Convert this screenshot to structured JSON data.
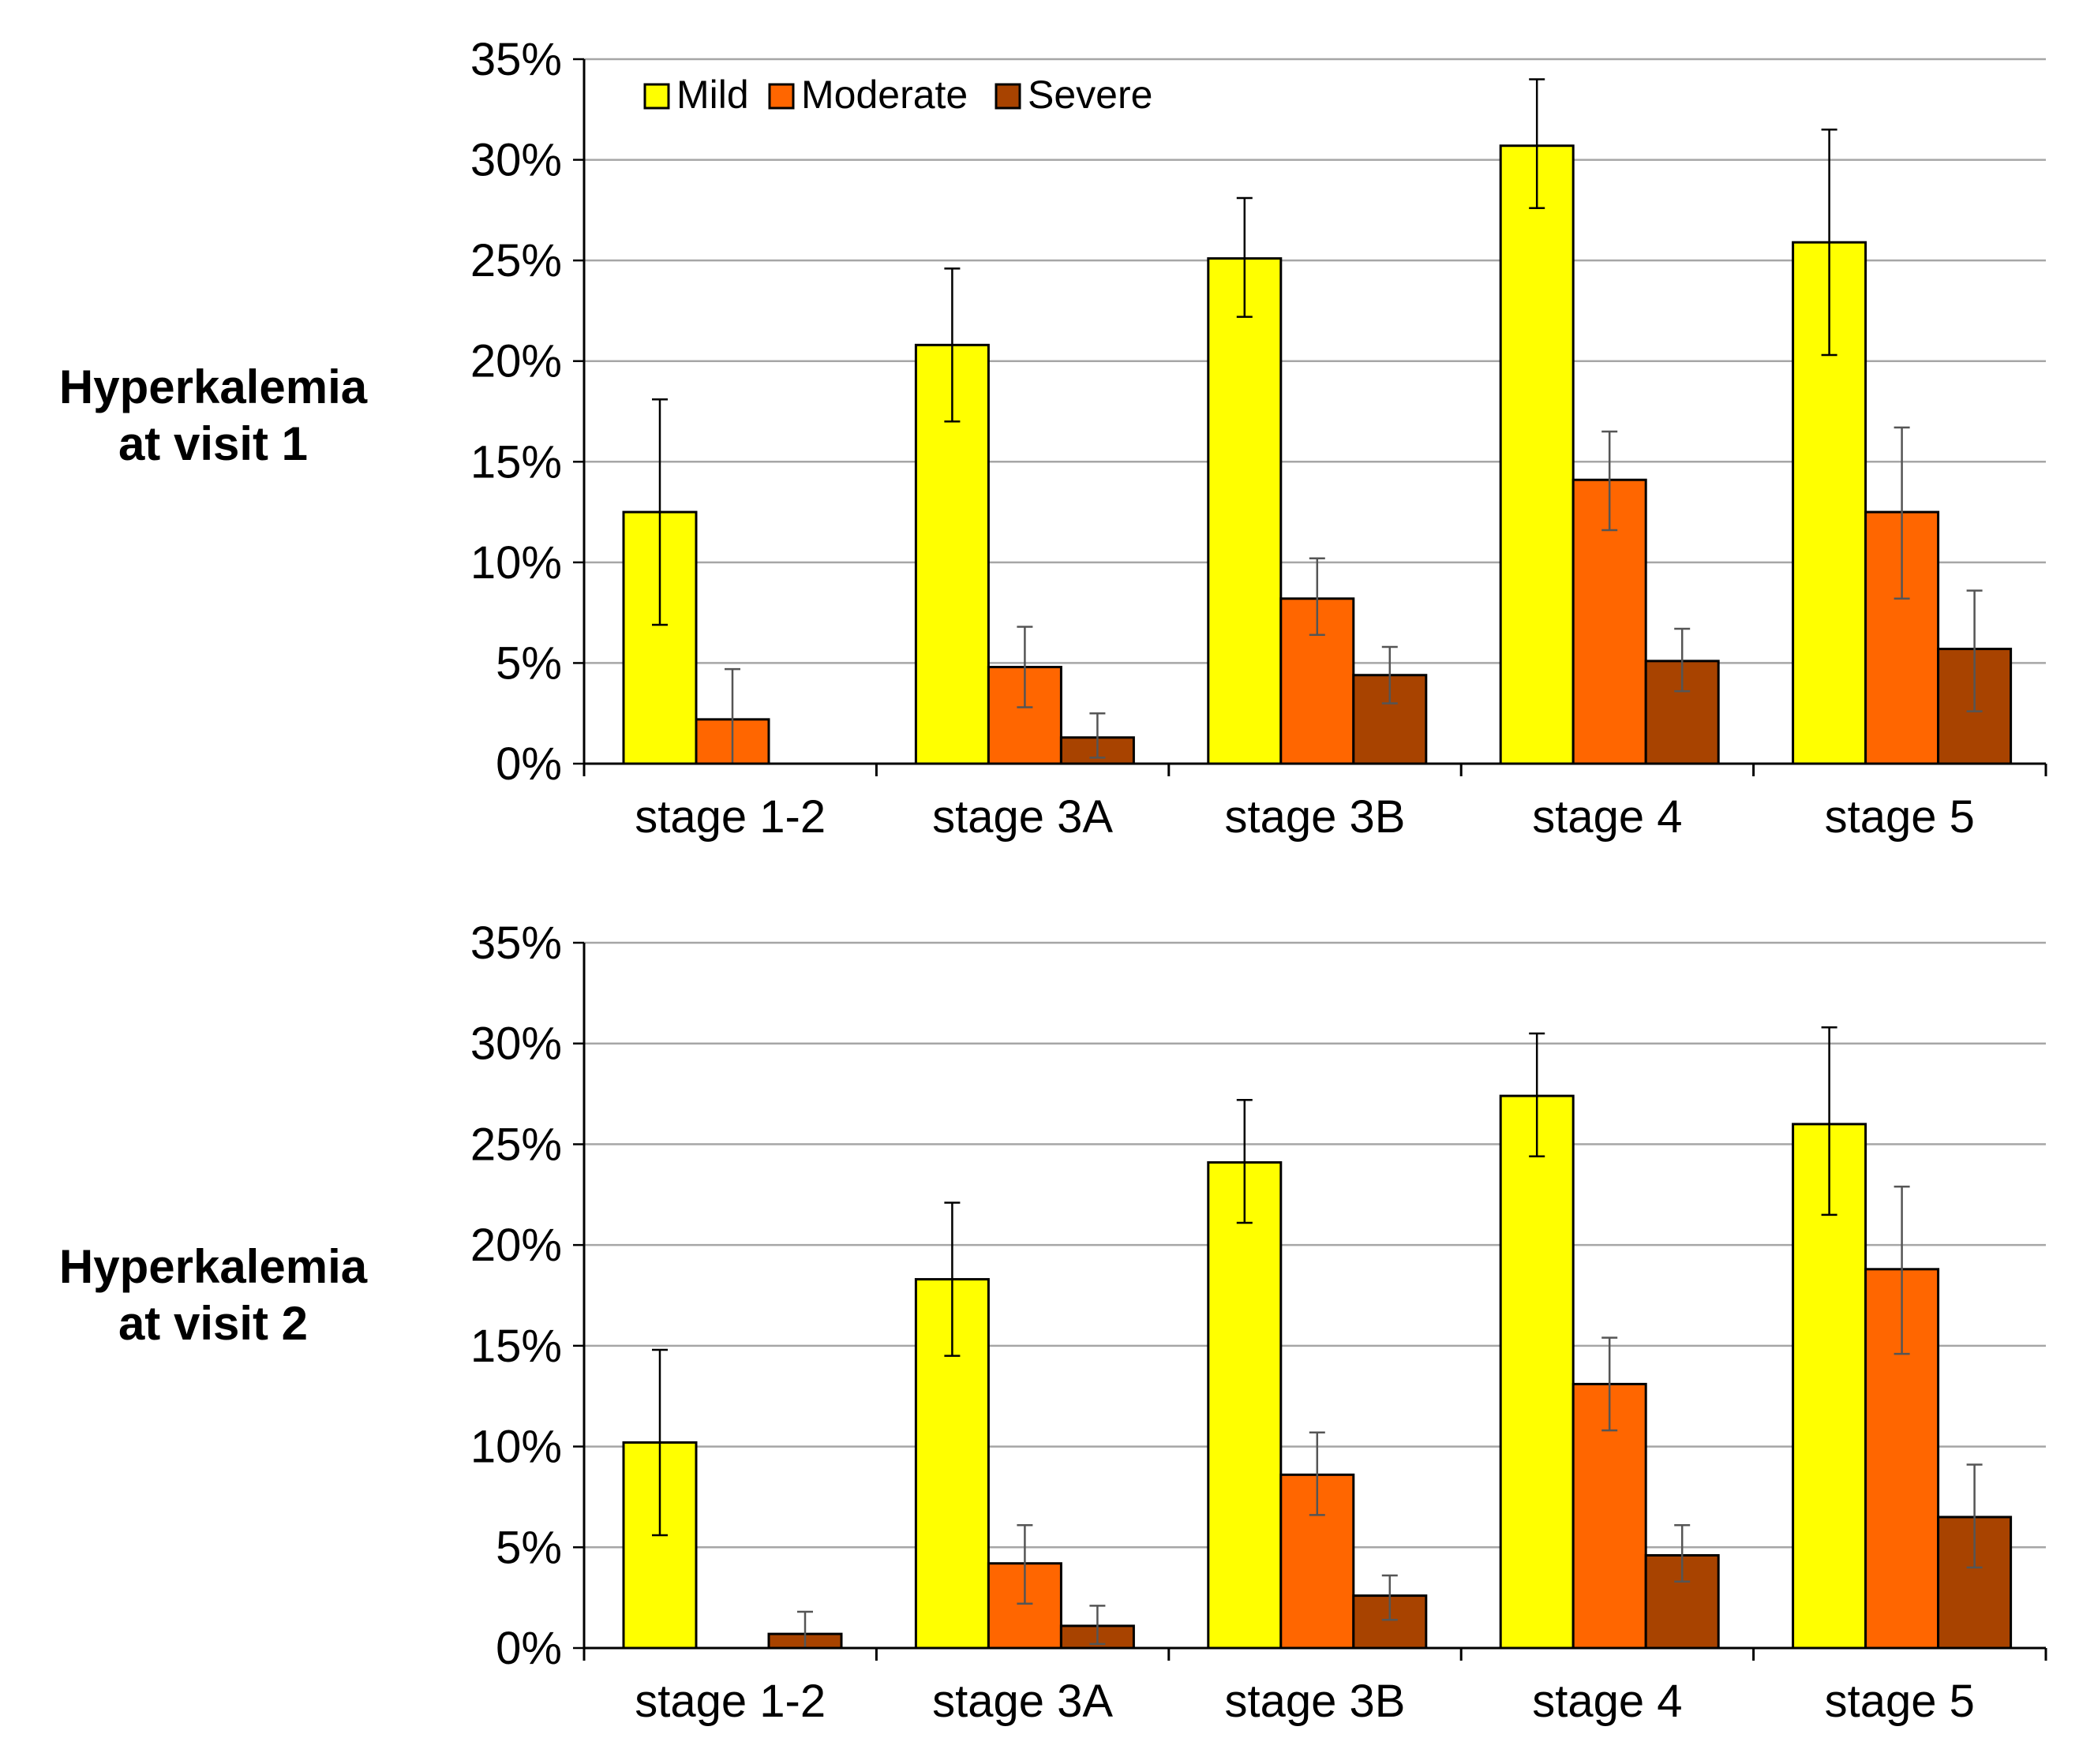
{
  "legend": [
    "Mild",
    "Moderate",
    "Severe"
  ],
  "colors": {
    "Mild": "#ffff00",
    "Moderate": "#ff6600",
    "Severe": "#a84300"
  },
  "chart_data": [
    {
      "type": "bar",
      "row_label": [
        "Hyperkalemia",
        "at visit 1"
      ],
      "categories": [
        "stage 1-2",
        "stage 3A",
        "stage 3B",
        "stage 4",
        "stage 5"
      ],
      "ylim": [
        0,
        35
      ],
      "yticks": [
        "0%",
        "5%",
        "10%",
        "15%",
        "20%",
        "25%",
        "30%",
        "35%"
      ],
      "series": [
        {
          "name": "Mild",
          "values": [
            12.5,
            20.8,
            25.1,
            30.7,
            25.9
          ],
          "err_low": [
            6.9,
            17.0,
            22.2,
            27.6,
            20.3
          ],
          "err_high": [
            18.1,
            24.6,
            28.1,
            34.0,
            31.5
          ]
        },
        {
          "name": "Moderate",
          "values": [
            2.2,
            4.8,
            8.2,
            14.1,
            12.5
          ],
          "err_low": [
            0.0,
            2.8,
            6.4,
            11.6,
            8.2
          ],
          "err_high": [
            4.7,
            6.8,
            10.2,
            16.5,
            16.7
          ]
        },
        {
          "name": "Severe",
          "values": [
            0.0,
            1.3,
            4.4,
            5.1,
            5.7
          ],
          "err_low": [
            null,
            0.3,
            3.0,
            3.6,
            2.6
          ],
          "err_high": [
            null,
            2.5,
            5.8,
            6.7,
            8.6
          ]
        }
      ]
    },
    {
      "type": "bar",
      "row_label": [
        "Hyperkalemia",
        "at visit 2"
      ],
      "categories": [
        "stage 1-2",
        "stage 3A",
        "stage 3B",
        "stage 4",
        "stage 5"
      ],
      "ylim": [
        0,
        35
      ],
      "yticks": [
        "0%",
        "5%",
        "10%",
        "15%",
        "20%",
        "25%",
        "30%",
        "35%"
      ],
      "series": [
        {
          "name": "Mild",
          "values": [
            10.2,
            18.3,
            24.1,
            27.4,
            26.0
          ],
          "err_low": [
            5.6,
            14.5,
            21.1,
            24.4,
            21.5
          ],
          "err_high": [
            14.8,
            22.1,
            27.2,
            30.5,
            30.8
          ]
        },
        {
          "name": "Moderate",
          "values": [
            0.0,
            4.2,
            8.6,
            13.1,
            18.8
          ],
          "err_low": [
            null,
            2.2,
            6.6,
            10.8,
            14.6
          ],
          "err_high": [
            null,
            6.1,
            10.7,
            15.4,
            22.9
          ]
        },
        {
          "name": "Severe",
          "values": [
            0.7,
            1.1,
            2.6,
            4.6,
            6.5
          ],
          "err_low": [
            0.0,
            0.2,
            1.4,
            3.3,
            4.0
          ],
          "err_high": [
            1.8,
            2.1,
            3.6,
            6.1,
            9.1
          ]
        }
      ]
    }
  ]
}
